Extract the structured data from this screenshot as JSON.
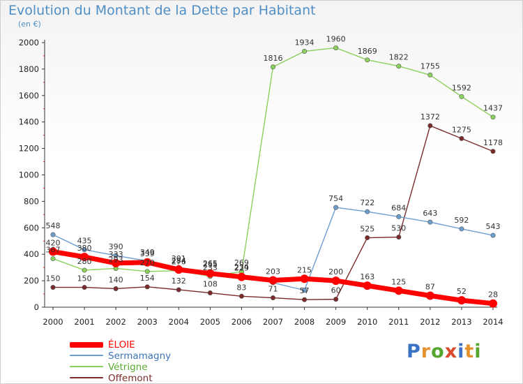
{
  "title": "Evolution du Montant de la Dette par Habitant",
  "subtitle": "(en €)",
  "logo": {
    "text": "Proxiti",
    "colors": [
      "#3b73c4",
      "#e3922f",
      "#55a52e",
      "#d94a2b",
      "#3b73c4",
      "#e3922f",
      "#55a52e"
    ]
  },
  "chart_data": {
    "type": "line",
    "x": [
      "2000",
      "2001",
      "2002",
      "2003",
      "2004",
      "2005",
      "2006",
      "2007",
      "2008",
      "2009",
      "2010",
      "2011",
      "2012",
      "2013",
      "2014"
    ],
    "ylim": [
      0,
      2000
    ],
    "yticks": [
      "0",
      "200",
      "400",
      "600",
      "800",
      "1000",
      "1200",
      "1400",
      "1600",
      "1800",
      "2000"
    ],
    "grid": false,
    "legend_position": "bottom-left",
    "series": [
      {
        "name": "Offemont",
        "color": "#7a2a2a",
        "width": 1.4,
        "values": [
          150,
          150,
          140,
          154,
          132,
          108,
          83,
          71,
          57,
          60,
          525,
          530,
          1372,
          1275,
          1178
        ],
        "labels": [
          "150",
          "150",
          "140",
          "154",
          "132",
          "108",
          "83",
          "71",
          "57",
          "60",
          "525",
          "530",
          "1372",
          "1275",
          "1178"
        ]
      },
      {
        "name": "Vétrigne",
        "color": "#8ad05c",
        "width": 1.4,
        "values": [
          367,
          280,
          293,
          270,
          276,
          233,
          269,
          1816,
          1934,
          1960,
          1869,
          1822,
          1755,
          1592,
          1437
        ],
        "labels": [
          "367",
          "280",
          "293",
          "270",
          "276",
          "233",
          "269",
          "1816",
          "1934",
          "1960",
          "1869",
          "1822",
          "1755",
          "1592",
          "1437"
        ]
      },
      {
        "name": "Sermamagny",
        "color": "#6d9ed0",
        "width": 1.4,
        "values": [
          548,
          435,
          390,
          349,
          301,
          265,
          234,
          185,
          128,
          754,
          722,
          684,
          643,
          592,
          543
        ],
        "labels": [
          "548",
          "435",
          "390",
          "349",
          "301",
          "265",
          "234",
          "",
          "",
          "754",
          "722",
          "684",
          "643",
          "592",
          "543"
        ]
      },
      {
        "name": "ÉLOIE",
        "color": "#ff0000",
        "width": 7,
        "values": [
          420,
          380,
          333,
          339,
          284,
          255,
          229,
          203,
          215,
          200,
          163,
          125,
          87,
          52,
          28
        ],
        "labels": [
          "420",
          "380",
          "333",
          "339",
          "284",
          "255",
          "229",
          "203",
          "215",
          "200",
          "163",
          "125",
          "87",
          "52",
          "28"
        ]
      }
    ],
    "legend_order": [
      "ÉLOIE",
      "Sermamagny",
      "Vétrigne",
      "Offemont"
    ]
  }
}
